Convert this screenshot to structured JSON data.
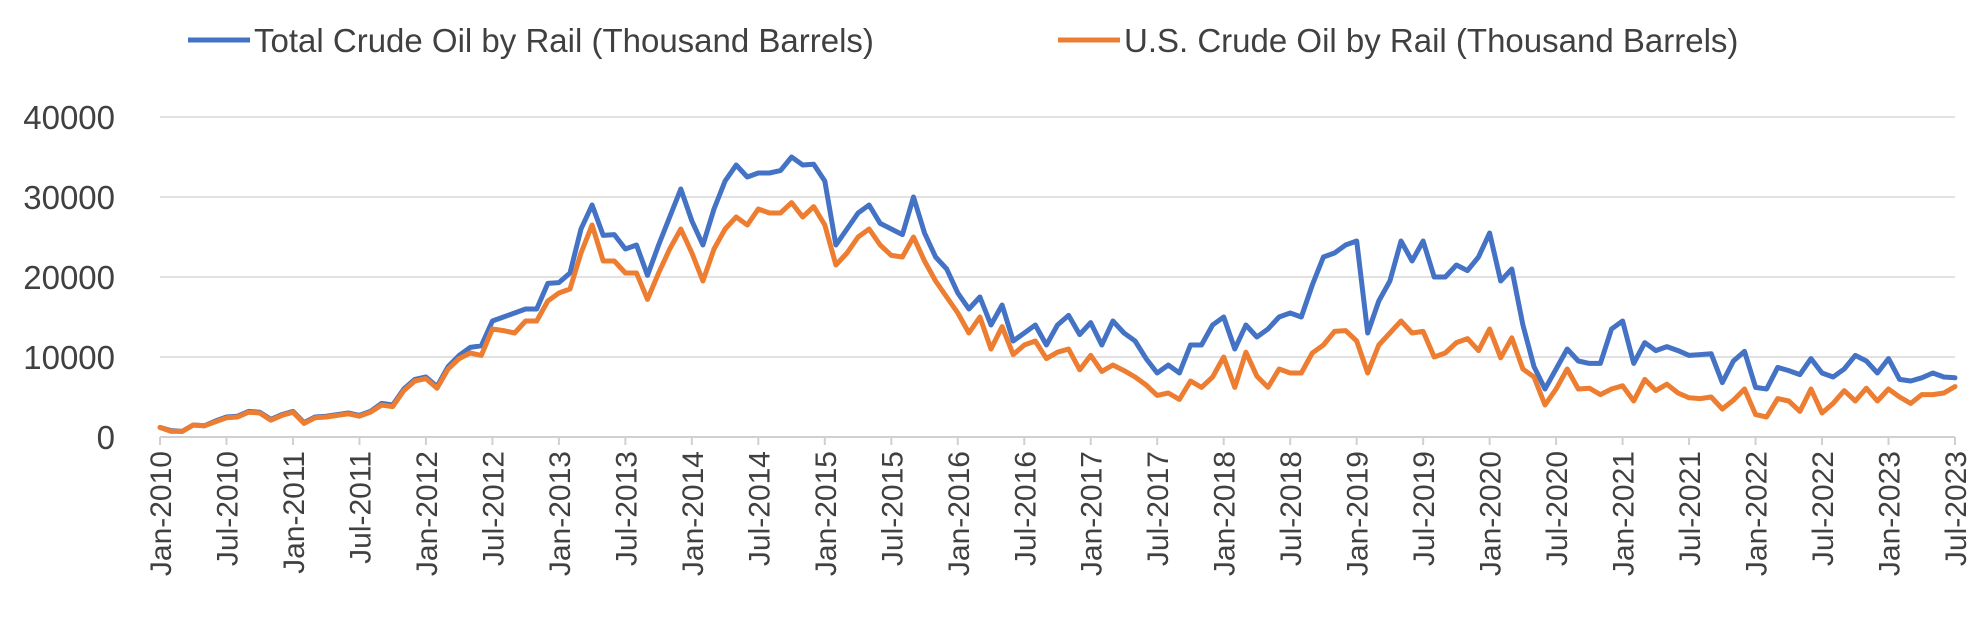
{
  "chart_data": {
    "type": "line",
    "title": "",
    "xlabel": "",
    "ylabel": "",
    "ylim": [
      0,
      40000
    ],
    "y_ticks": [
      0,
      10000,
      20000,
      30000,
      40000
    ],
    "y_tick_labels": [
      "0",
      "10000",
      "20000",
      "30000",
      "40000"
    ],
    "x_tick_labels": [
      "Jan-2010",
      "Jul-2010",
      "Jan-2011",
      "Jul-2011",
      "Jan-2012",
      "Jul-2012",
      "Jan-2013",
      "Jul-2013",
      "Jan-2014",
      "Jul-2014",
      "Jan-2015",
      "Jul-2015",
      "Jan-2016",
      "Jul-2016",
      "Jan-2017",
      "Jul-2017",
      "Jan-2018",
      "Jul-2018",
      "Jan-2019",
      "Jul-2019",
      "Jan-2020",
      "Jul-2020",
      "Jan-2021",
      "Jul-2021",
      "Jan-2022",
      "Jul-2022",
      "Jan-2023",
      "Jul-2023"
    ],
    "x_start": "Jan-2010",
    "x_interval": "monthly",
    "grid": "horizontal",
    "legend_position": "top",
    "series": [
      {
        "name": "Total Crude Oil by Rail (Thousand Barrels)",
        "color": "#4472C4",
        "values": [
          1200,
          800,
          700,
          1500,
          1400,
          2000,
          2500,
          2600,
          3200,
          3100,
          2200,
          2800,
          3200,
          1800,
          2500,
          2600,
          2800,
          3000,
          2700,
          3200,
          4200,
          4000,
          6000,
          7200,
          7500,
          6300,
          8800,
          10200,
          11200,
          11400,
          14500,
          15000,
          15500,
          16000,
          16000,
          19200,
          19300,
          20500,
          26000,
          29000,
          25200,
          25300,
          23500,
          24000,
          20200,
          24000,
          27500,
          31000,
          27000,
          24000,
          28500,
          32000,
          34000,
          32500,
          33000,
          33000,
          33300,
          35000,
          34000,
          34100,
          32000,
          24000,
          26000,
          28000,
          29000,
          26700,
          26000,
          25300,
          30000,
          25500,
          22500,
          21000,
          18000,
          16000,
          17500,
          14000,
          16500,
          12000,
          13000,
          14000,
          11500,
          14000,
          15200,
          12800,
          14300,
          11500,
          14500,
          13000,
          12000,
          9800,
          8000,
          9000,
          8000,
          11500,
          11500,
          14000,
          15000,
          11000,
          14000,
          12500,
          13500,
          15000,
          15500,
          15000,
          19000,
          22500,
          23000,
          24000,
          24500,
          13000,
          17000,
          19500,
          24500,
          22000,
          24500,
          20000,
          20000,
          21500,
          20800,
          22500,
          25500,
          19500,
          21000,
          14000,
          8800,
          6000,
          8500,
          11000,
          9500,
          9200,
          9200,
          13500,
          14500,
          9200,
          11800,
          10800,
          11300,
          10800,
          10200,
          10300,
          10400,
          6800,
          9500,
          10700,
          6200,
          6000,
          8700,
          8300,
          7800,
          9800,
          8000,
          7500,
          8500,
          10200,
          9500,
          8000,
          9800,
          7200,
          7000,
          7400,
          8000,
          7500,
          7400
        ]
      },
      {
        "name": "U.S. Crude Oil by Rail (Thousand Barrels)",
        "color": "#ED7D31",
        "values": [
          1200,
          700,
          700,
          1500,
          1400,
          1900,
          2400,
          2500,
          3100,
          3000,
          2100,
          2700,
          3100,
          1700,
          2400,
          2500,
          2700,
          2900,
          2600,
          3100,
          4000,
          3800,
          5800,
          7000,
          7300,
          6100,
          8500,
          9800,
          10500,
          10200,
          13500,
          13300,
          13000,
          14500,
          14500,
          17000,
          18000,
          18500,
          23000,
          26500,
          22000,
          22000,
          20500,
          20500,
          17200,
          20500,
          23500,
          26000,
          23000,
          19500,
          23500,
          26000,
          27500,
          26500,
          28500,
          28000,
          28000,
          29300,
          27500,
          28800,
          26500,
          21500,
          23000,
          25000,
          26000,
          24000,
          22700,
          22500,
          25000,
          22000,
          19500,
          17500,
          15500,
          13000,
          15000,
          11000,
          13800,
          10300,
          11500,
          12000,
          9800,
          10600,
          11000,
          8400,
          10200,
          8200,
          9000,
          8300,
          7500,
          6500,
          5200,
          5500,
          4700,
          7000,
          6200,
          7500,
          10000,
          6200,
          10600,
          7600,
          6200,
          8500,
          8000,
          8000,
          10500,
          11500,
          13200,
          13300,
          12000,
          8000,
          11500,
          13000,
          14500,
          13000,
          13200,
          10000,
          10500,
          11800,
          12300,
          10800,
          13500,
          9900,
          12400,
          8500,
          7500,
          4000,
          6000,
          8500,
          6000,
          6100,
          5300,
          6000,
          6400,
          4500,
          7200,
          5800,
          6600,
          5500,
          4900,
          4800,
          5000,
          3500,
          4600,
          6000,
          2800,
          2500,
          4800,
          4500,
          3200,
          6000,
          3000,
          4200,
          5800,
          4500,
          6100,
          4500,
          6000,
          5000,
          4200,
          5300,
          5300,
          5500,
          6300
        ]
      }
    ]
  }
}
